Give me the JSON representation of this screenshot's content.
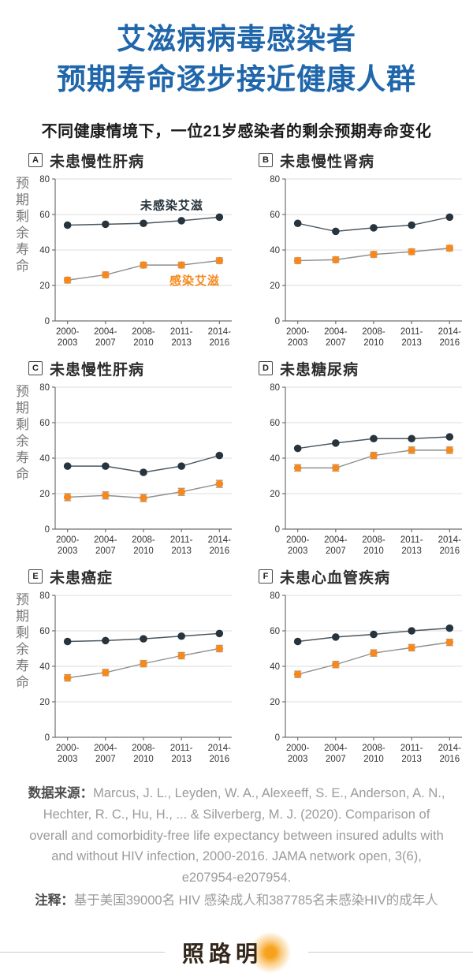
{
  "header": {
    "title_line1": "艾滋病病毒感染者",
    "title_line2": "预期寿命逐步接近健康人群",
    "subtitle": "不同健康情境下，一位21岁感染者的剩余预期寿命变化"
  },
  "colors": {
    "title_blue": "#1f66ab",
    "uninfected": "#27343d",
    "infected": "#f6891e",
    "uninfected_line": "#4a565e",
    "infected_line": "#8f8f8f",
    "grid": "#dcdcdc",
    "axis": "#707070",
    "tick_text": "#333333",
    "error_bar": "#999999"
  },
  "series_labels": {
    "uninfected": "未感染艾滋",
    "infected": "感染艾滋"
  },
  "axis": {
    "ylabel": "预期剩余寿命",
    "ylim": [
      0,
      80
    ],
    "yticks": [
      0,
      20,
      40,
      60,
      80
    ],
    "categories": [
      "2000-2003",
      "2004-2007",
      "2008-2010",
      "2011-2013",
      "2014-2016"
    ]
  },
  "chart_data": [
    {
      "type": "line",
      "panel": "A",
      "title": "未患慢性肝病",
      "show_ylabel": true,
      "show_legend": true,
      "ylim": [
        0,
        80
      ],
      "yticks": [
        0,
        20,
        40,
        60,
        80
      ],
      "categories": [
        "2000-2003",
        "2004-2007",
        "2008-2010",
        "2011-2013",
        "2014-2016"
      ],
      "series": [
        {
          "name": "未感染艾滋",
          "color_key": "uninfected",
          "values": [
            54,
            54.5,
            55,
            56.5,
            58.5
          ]
        },
        {
          "name": "感染艾滋",
          "color_key": "infected",
          "values": [
            23,
            26,
            31.5,
            31.5,
            34
          ],
          "error": 1.6
        }
      ]
    },
    {
      "type": "line",
      "panel": "B",
      "title": "未患慢性肾病",
      "show_ylabel": false,
      "show_legend": false,
      "ylim": [
        0,
        80
      ],
      "yticks": [
        0,
        20,
        40,
        60,
        80
      ],
      "categories": [
        "2000-2003",
        "2004-2007",
        "2008-2010",
        "2011-2013",
        "2014-2016"
      ],
      "series": [
        {
          "name": "未感染艾滋",
          "color_key": "uninfected",
          "values": [
            55,
            50.5,
            52.5,
            54,
            58.5
          ]
        },
        {
          "name": "感染艾滋",
          "color_key": "infected",
          "values": [
            34,
            34.5,
            37.5,
            39,
            41
          ],
          "error": 1.6
        }
      ]
    },
    {
      "type": "line",
      "panel": "C",
      "title": "未患慢性肝病",
      "show_ylabel": true,
      "show_legend": false,
      "ylim": [
        0,
        80
      ],
      "yticks": [
        0,
        20,
        40,
        60,
        80
      ],
      "categories": [
        "2000-2003",
        "2004-2007",
        "2008-2010",
        "2011-2013",
        "2014-2016"
      ],
      "series": [
        {
          "name": "未感染艾滋",
          "color_key": "uninfected",
          "values": [
            35.5,
            35.5,
            32,
            35.5,
            41.5
          ]
        },
        {
          "name": "感染艾滋",
          "color_key": "infected",
          "values": [
            18,
            19,
            17.5,
            21,
            25.5
          ],
          "error": 2
        }
      ]
    },
    {
      "type": "line",
      "panel": "D",
      "title": "未患糖尿病",
      "show_ylabel": false,
      "show_legend": false,
      "ylim": [
        0,
        80
      ],
      "yticks": [
        0,
        20,
        40,
        60,
        80
      ],
      "categories": [
        "2000-2003",
        "2004-2007",
        "2008-2010",
        "2011-2013",
        "2014-2016"
      ],
      "series": [
        {
          "name": "未感染艾滋",
          "color_key": "uninfected",
          "values": [
            45.5,
            48.5,
            51,
            51,
            52
          ]
        },
        {
          "name": "感染艾滋",
          "color_key": "infected",
          "values": [
            34.5,
            34.5,
            41.5,
            44.5,
            44.5
          ],
          "error": 1.8
        }
      ]
    },
    {
      "type": "line",
      "panel": "E",
      "title": "未患癌症",
      "show_ylabel": true,
      "show_legend": false,
      "ylim": [
        0,
        80
      ],
      "yticks": [
        0,
        20,
        40,
        60,
        80
      ],
      "categories": [
        "2000-2003",
        "2004-2007",
        "2008-2010",
        "2011-2013",
        "2014-2016"
      ],
      "series": [
        {
          "name": "未感染艾滋",
          "color_key": "uninfected",
          "values": [
            54,
            54.5,
            55.5,
            57,
            58.5
          ]
        },
        {
          "name": "感染艾滋",
          "color_key": "infected",
          "values": [
            33.5,
            36.5,
            41.5,
            46,
            50
          ],
          "error": 1.8
        }
      ]
    },
    {
      "type": "line",
      "panel": "F",
      "title": "未患心血管疾病",
      "show_ylabel": false,
      "show_legend": false,
      "ylim": [
        0,
        80
      ],
      "yticks": [
        0,
        20,
        40,
        60,
        80
      ],
      "categories": [
        "2000-2003",
        "2004-2007",
        "2008-2010",
        "2011-2013",
        "2014-2016"
      ],
      "series": [
        {
          "name": "未感染艾滋",
          "color_key": "uninfected",
          "values": [
            54,
            56.5,
            58,
            60,
            61.5
          ]
        },
        {
          "name": "感染艾滋",
          "color_key": "infected",
          "values": [
            35.5,
            41,
            47.5,
            50.5,
            53.5
          ],
          "error": 1.8
        }
      ]
    }
  ],
  "footer": {
    "source_label": "数据来源：",
    "source_text": "Marcus, J. L., Leyden, W. A., Alexeeff, S. E., Anderson, A. N., Hechter, R. C., Hu, H., ... & Silverberg, M. J. (2020). Comparison of overall and comorbidity-free life expectancy between insured adults with and without HIV infection, 2000-2016. JAMA network open, 3(6), e207954-e207954.",
    "note_label": "注释：",
    "note_text": "基于美国39000名 HIV 感染成人和387785名未感染HIV的成年人"
  },
  "logo": {
    "text": "照路明"
  }
}
